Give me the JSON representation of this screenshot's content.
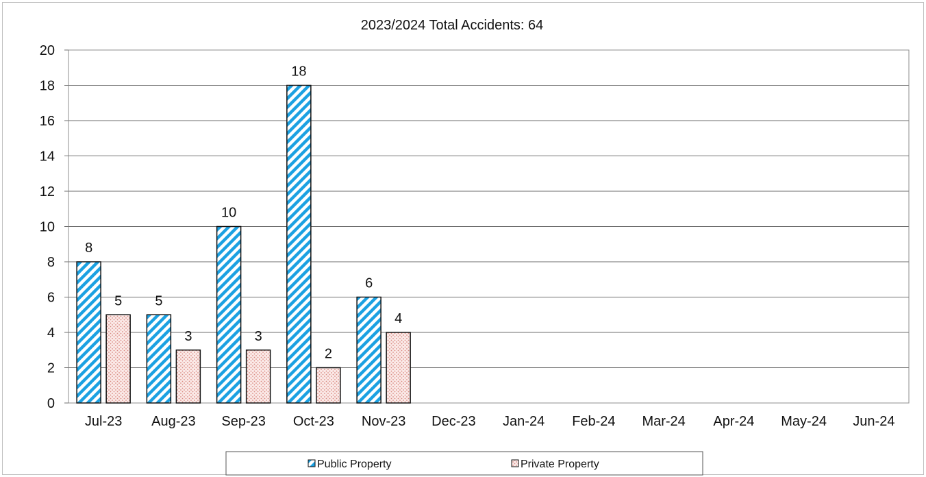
{
  "chart_data": {
    "type": "bar",
    "title": "2023/2024 Total Accidents: 64",
    "categories": [
      "Jul-23",
      "Aug-23",
      "Sep-23",
      "Oct-23",
      "Nov-23",
      "Dec-23",
      "Jan-24",
      "Feb-24",
      "Mar-24",
      "Apr-24",
      "May-24",
      "Jun-24"
    ],
    "series": [
      {
        "name": "Public Property",
        "values": [
          8,
          5,
          10,
          18,
          6,
          null,
          null,
          null,
          null,
          null,
          null,
          null
        ],
        "color": "#1ba1e2",
        "pattern": "diagonal-stripes"
      },
      {
        "name": "Private Property",
        "values": [
          5,
          3,
          3,
          2,
          4,
          null,
          null,
          null,
          null,
          null,
          null,
          null
        ],
        "color": "#f4c6c0",
        "pattern": "dots"
      }
    ],
    "ylim": [
      0,
      20
    ],
    "yticks": [
      "0",
      "2",
      "4",
      "6",
      "8",
      "10",
      "12",
      "14",
      "16",
      "18",
      "20"
    ],
    "grid": true,
    "legend_position": "bottom"
  }
}
